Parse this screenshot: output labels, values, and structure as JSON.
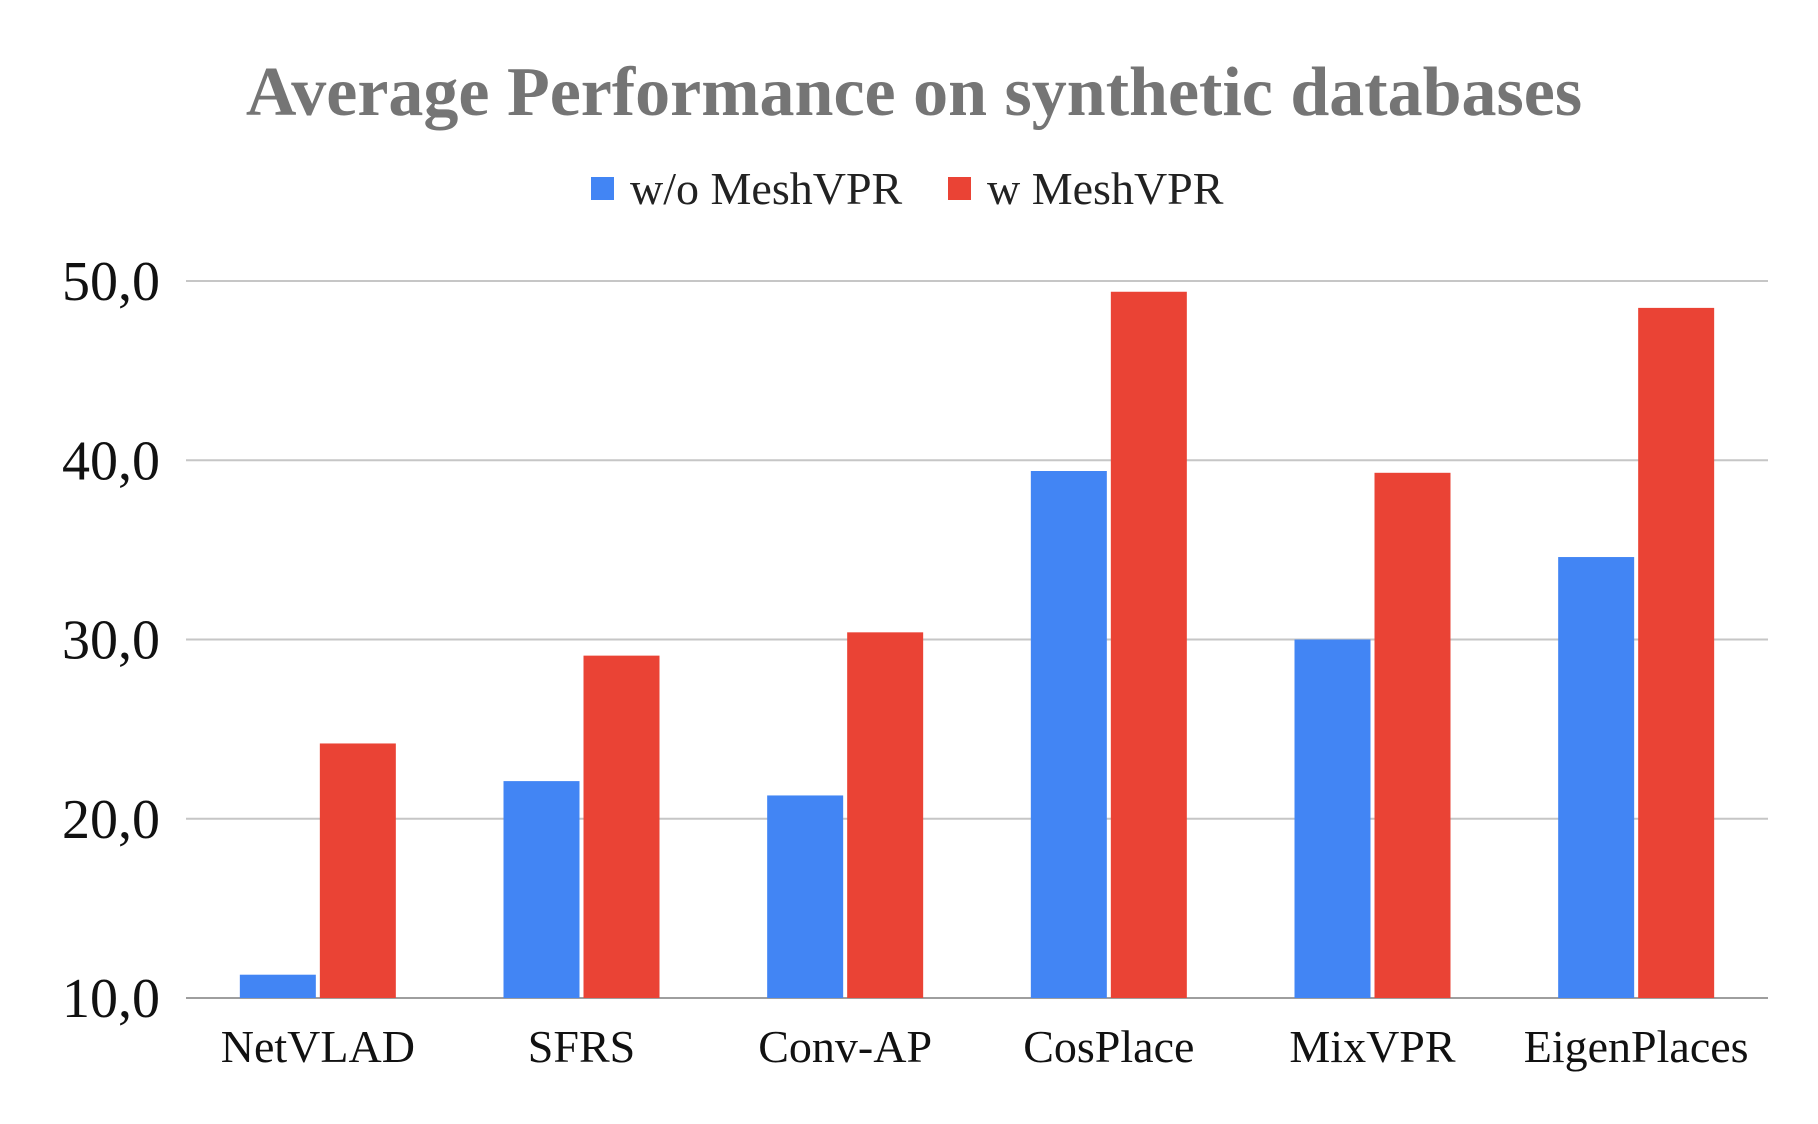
{
  "chart_data": {
    "type": "bar",
    "title": "Average Performance on synthetic databases",
    "categories": [
      "NetVLAD",
      "SFRS",
      "Conv-AP",
      "CosPlace",
      "MixVPR",
      "EigenPlaces"
    ],
    "series": [
      {
        "name": "w/o MeshVPR",
        "color": "#4285f4",
        "values": [
          11.3,
          22.1,
          21.3,
          39.4,
          30.0,
          34.6
        ]
      },
      {
        "name": "w MeshVPR",
        "color": "#ea4335",
        "values": [
          24.2,
          29.1,
          30.4,
          49.4,
          39.3,
          48.5
        ]
      }
    ],
    "ylim": [
      10,
      50
    ],
    "yticks": [
      10,
      20,
      30,
      40,
      50
    ],
    "ytick_labels": [
      "10,0",
      "20,0",
      "30,0",
      "40,0",
      "50,0"
    ],
    "xlabel": "",
    "ylabel": "",
    "grid": true,
    "legend_position": "top-center"
  }
}
